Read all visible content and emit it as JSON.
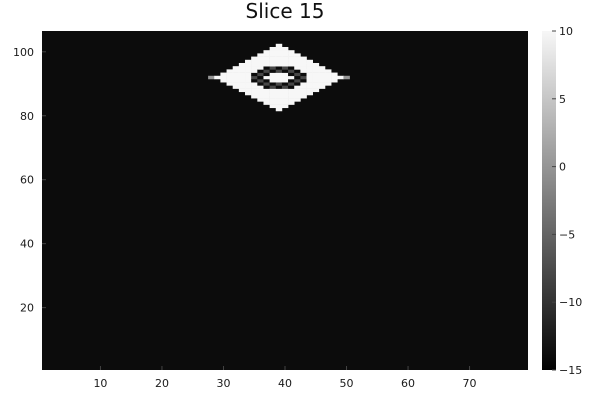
{
  "chart_data": {
    "type": "heatmap",
    "title": "Slice 15",
    "xlabel": "",
    "ylabel": "",
    "x_range": [
      0.5,
      79.5
    ],
    "y_range": [
      0.5,
      106.5
    ],
    "xticks": [
      10,
      20,
      30,
      40,
      50,
      60,
      70
    ],
    "yticks": [
      20,
      40,
      60,
      80,
      100
    ],
    "colorbar": {
      "range": [
        -15,
        10
      ],
      "ticks": [
        10,
        5,
        0,
        -5,
        -10,
        -15
      ],
      "colormap": "grayscale"
    },
    "background_value": -14,
    "feature": {
      "shape": "diamond ring",
      "center": [
        39,
        92
      ],
      "outer_half_width": 11,
      "outer_half_height": 10.5,
      "value": 10,
      "inner_ring_value": -14,
      "inner_ring_alt_value": -8,
      "inner_hole_value": 10
    },
    "grid": false
  }
}
